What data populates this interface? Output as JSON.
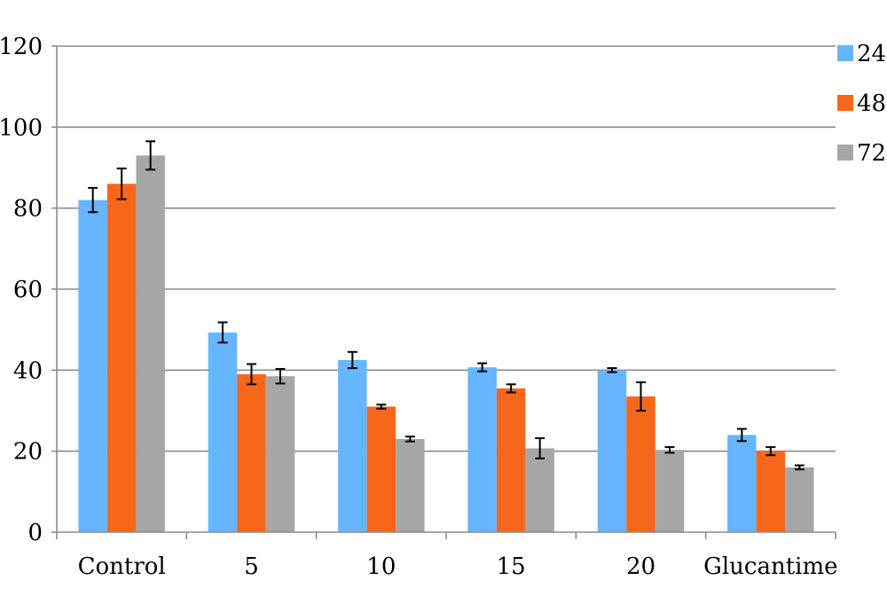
{
  "chart_data": {
    "type": "bar",
    "categories": [
      "Control",
      "5",
      "10",
      "15",
      "20",
      "Glucantime"
    ],
    "ylim": [
      0,
      120
    ],
    "yticks": [
      0,
      20,
      40,
      60,
      80,
      100,
      120
    ],
    "grid": true,
    "legend_position": "right",
    "series": [
      {
        "name": "24",
        "color": "#66b5ff",
        "values": [
          82,
          49.3,
          42.5,
          40.7,
          40,
          24
        ],
        "errors": [
          3,
          2.5,
          2,
          1,
          0.5,
          1.5
        ]
      },
      {
        "name": "48",
        "color": "#f7671b",
        "values": [
          86,
          39,
          31,
          35.5,
          33.5,
          20
        ],
        "errors": [
          3.8,
          2.5,
          0.5,
          1,
          3.5,
          1
        ]
      },
      {
        "name": "72",
        "color": "#a6a6a6",
        "values": [
          93,
          38.5,
          23,
          20.7,
          20.3,
          16
        ],
        "errors": [
          3.5,
          1.8,
          0.6,
          2.5,
          0.7,
          0.5
        ]
      }
    ]
  }
}
